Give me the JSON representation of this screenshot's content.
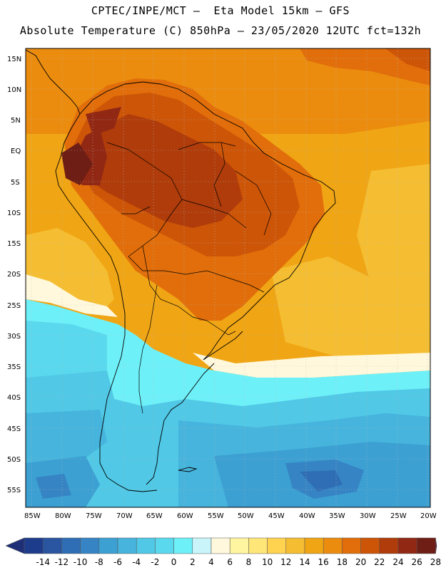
{
  "header": {
    "line1": "CPTEC/INPE/MCT –  Eta Model 15km – GFS",
    "line2": "Absolute Temperature (C) 850hPa – 23/05/2020 12UTC fct=132h"
  },
  "map": {
    "lat_labels": [
      "15N",
      "10N",
      "5N",
      "EQ",
      "5S",
      "10S",
      "15S",
      "20S",
      "25S",
      "30S",
      "35S",
      "40S",
      "45S",
      "50S",
      "55S"
    ],
    "lon_labels": [
      "85W",
      "80W",
      "75W",
      "70W",
      "65W",
      "60W",
      "55W",
      "50W",
      "45W",
      "40W",
      "35W",
      "30W",
      "25W",
      "20W"
    ]
  },
  "legend": {
    "labels": [
      "-14",
      "-12",
      "-10",
      "-8",
      "-6",
      "-4",
      "-2",
      "0",
      "2",
      "4",
      "6",
      "8",
      "10",
      "12",
      "14",
      "16",
      "18",
      "20",
      "22",
      "24",
      "26",
      "28"
    ],
    "colors": [
      "#1e3c8c",
      "#2a55a0",
      "#2f6eb4",
      "#3684c4",
      "#3ca0d2",
      "#46b4dc",
      "#50c8e6",
      "#5ad8ee",
      "#6ef0f8",
      "#c8f4fa",
      "#fff8dc",
      "#fff5a0",
      "#ffe678",
      "#ffd250",
      "#f5be32",
      "#f0a514",
      "#eb8c0f",
      "#e16e0a",
      "#cd5508",
      "#af3c0a",
      "#912814",
      "#6e1e14"
    ],
    "low_arrow_color": "#1e2f78",
    "high_arrow_color": "#5a0a2a"
  }
}
